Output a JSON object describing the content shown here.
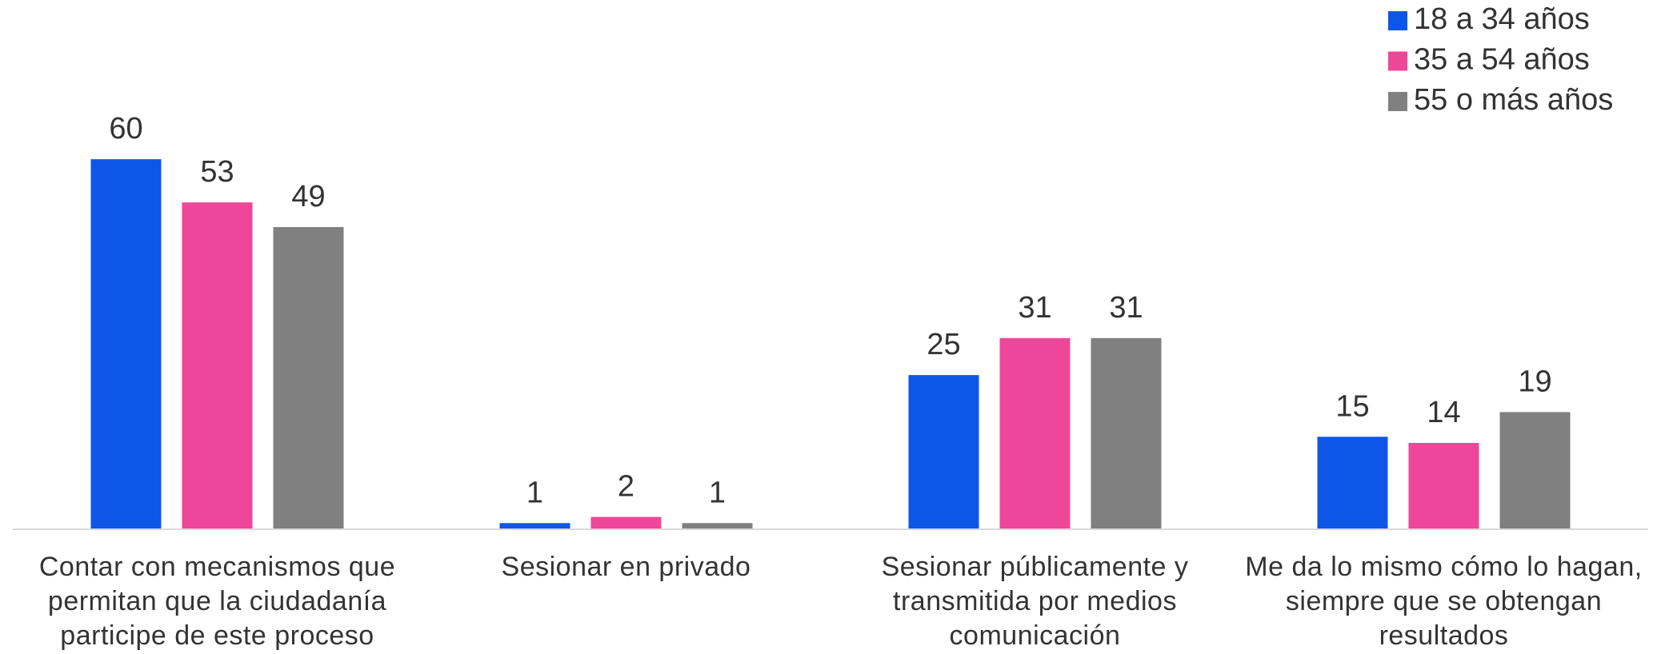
{
  "chart_data": {
    "type": "bar",
    "categories": [
      "Contar con mecanismos que permitan que la ciudadanía participe de este proceso",
      "Sesionar en privado",
      "Sesionar públicamente y transmitida por medios comunicación",
      "Me da lo mismo cómo lo hagan, siempre que se obtengan resultados"
    ],
    "series": [
      {
        "name": "18 a 34 años",
        "color": "#0e57e6",
        "values": [
          60,
          1,
          25,
          15
        ]
      },
      {
        "name": "35 a 54 años",
        "color": "#ee4699",
        "values": [
          53,
          2,
          31,
          14
        ]
      },
      {
        "name": "55 o más años",
        "color": "#808080",
        "values": [
          49,
          1,
          31,
          19
        ]
      }
    ],
    "ylim": [
      0,
      70
    ],
    "legend": "top-right"
  }
}
